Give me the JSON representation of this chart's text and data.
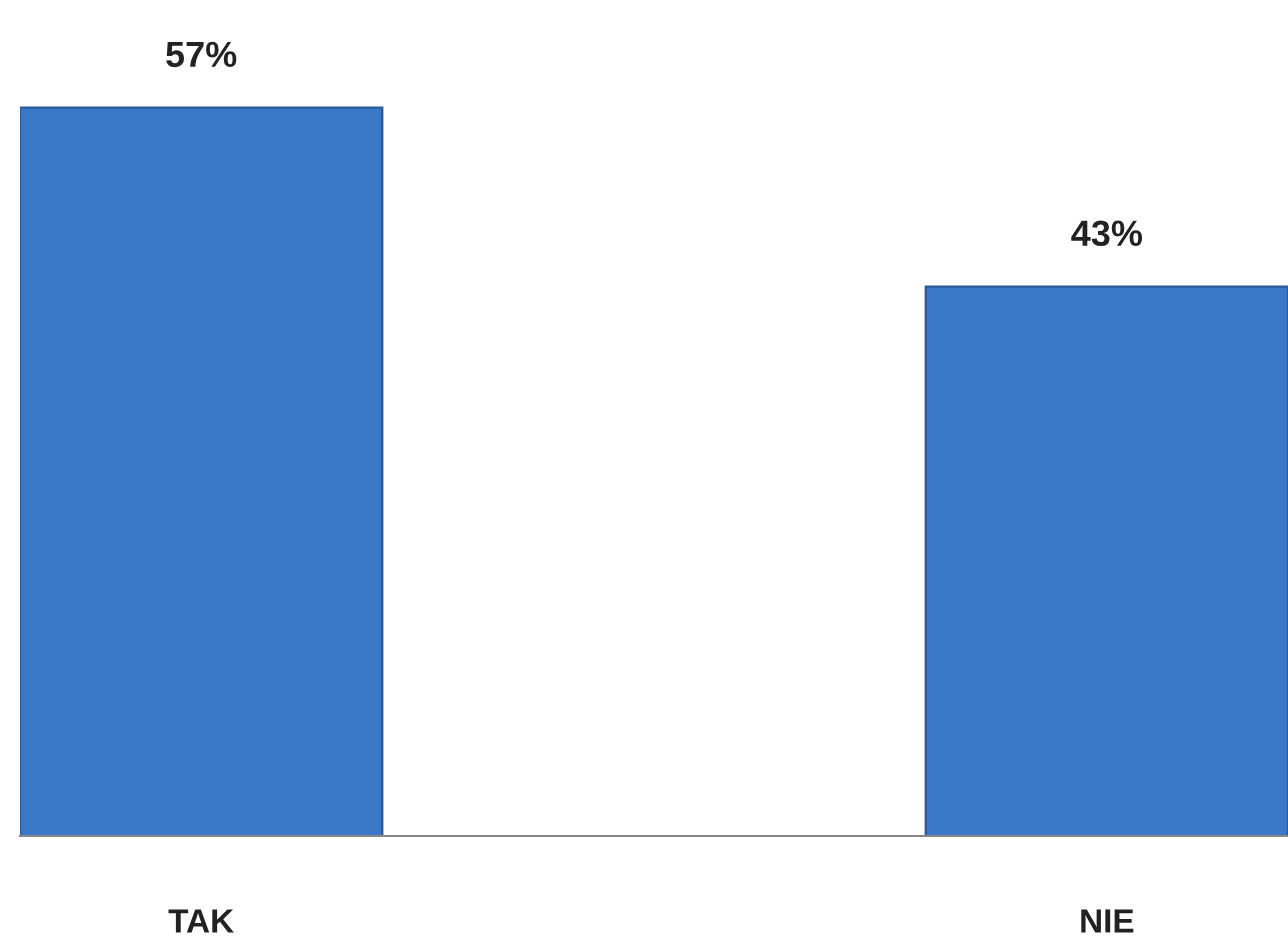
{
  "chart_data": {
    "type": "bar",
    "categories": [
      "TAK",
      "NIE"
    ],
    "values": [
      57,
      43
    ],
    "value_labels": [
      "57%",
      "43%"
    ],
    "color": "#3b78c8",
    "relative": false,
    "grid": false,
    "legend": false
  }
}
